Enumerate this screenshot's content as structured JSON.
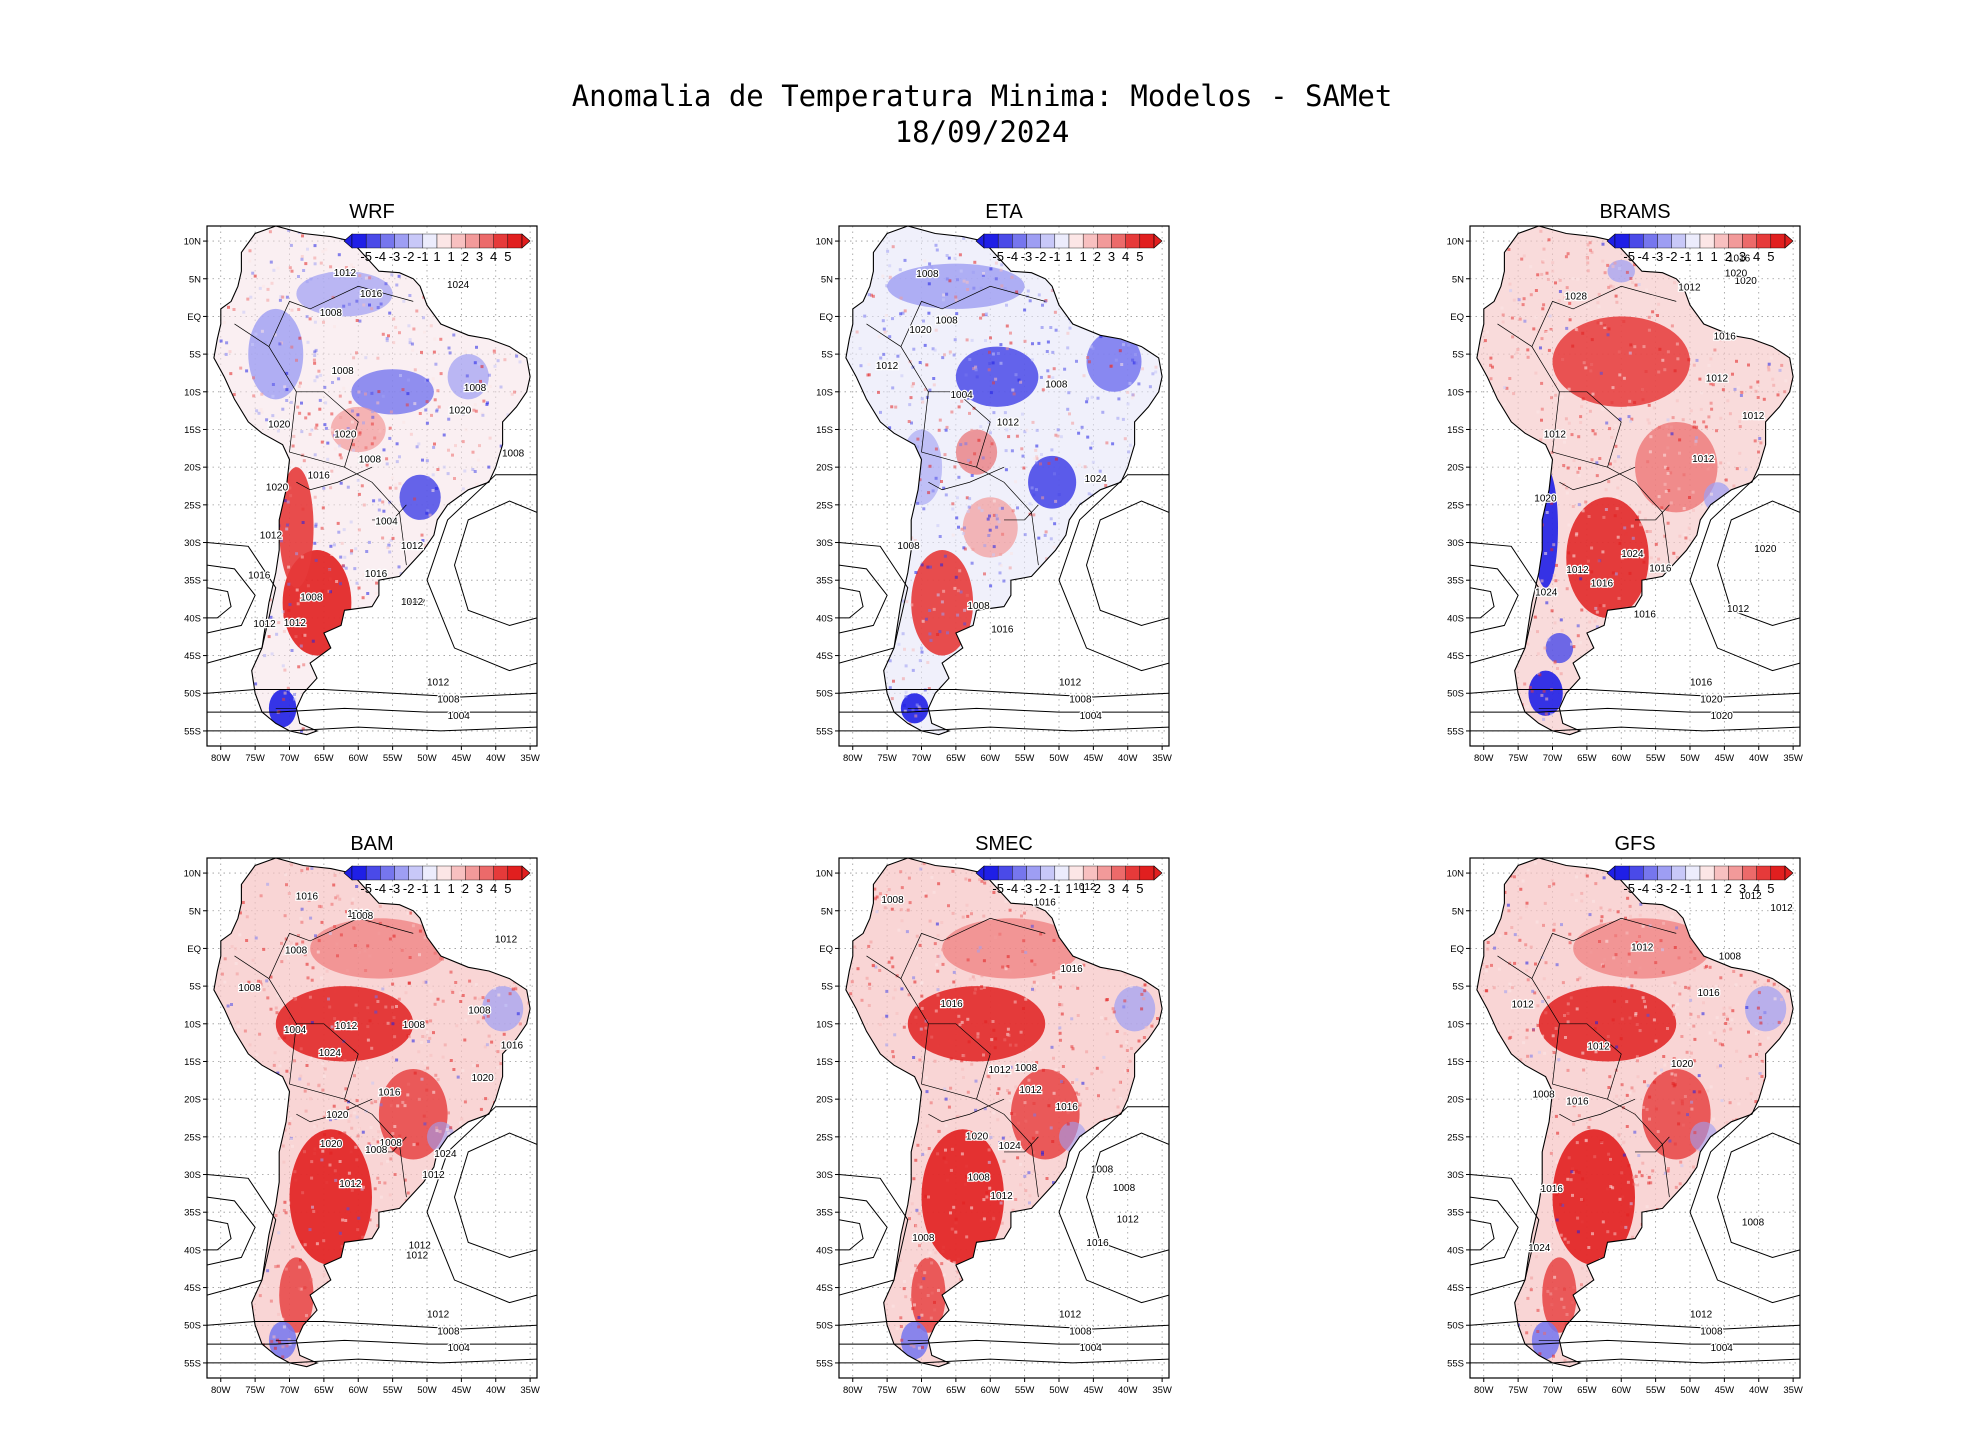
{
  "header": {
    "title": "Anomalia de Temperatura Minima: Modelos - SAMet",
    "date": "18/09/2024"
  },
  "colorbar": {
    "labels": [
      "-5",
      "-4",
      "-3",
      "-2",
      "-1",
      "1",
      "1",
      "2",
      "3",
      "4",
      "5"
    ],
    "colors": [
      "#1f1fe6",
      "#4a4ae8",
      "#7676ee",
      "#9e9ef3",
      "#c8c8f8",
      "#ececfc",
      "#fce6e6",
      "#f8c0c0",
      "#f29a9a",
      "#ec6a6a",
      "#e63a3a",
      "#e11f1f"
    ]
  },
  "axes": {
    "lat_labels": [
      "10N",
      "5N",
      "EQ",
      "5S",
      "10S",
      "15S",
      "20S",
      "25S",
      "30S",
      "35S",
      "40S",
      "45S",
      "50S",
      "55S"
    ],
    "lon_labels": [
      "80W",
      "75W",
      "70W",
      "65W",
      "60W",
      "55W",
      "50W",
      "45W",
      "40W",
      "35W"
    ]
  },
  "panels": [
    {
      "name": "WRF",
      "tone": "mixed",
      "pressure_labels": [
        "1008",
        "1012",
        "1016",
        "1012",
        "1012",
        "1008",
        "1008",
        "1012",
        "1020",
        "1016",
        "1020",
        "1012",
        "1008",
        "1012",
        "1020",
        "1016",
        "1020",
        "1024",
        "1012",
        "1016",
        "1008",
        "1004",
        "1008",
        "1012",
        "1008",
        "1004"
      ]
    },
    {
      "name": "ETA",
      "tone": "cool",
      "pressure_labels": [
        "1008",
        "1008",
        "1008",
        "1012",
        "1016",
        "1020",
        "1024",
        "1008",
        "1012",
        "1004",
        "1008",
        "1012",
        "1008",
        "1004"
      ]
    },
    {
      "name": "BRAMS",
      "tone": "warm",
      "pressure_labels": [
        "1016",
        "1012",
        "1012",
        "1012",
        "1016",
        "1016",
        "1020",
        "1012",
        "1012",
        "1024",
        "1020",
        "1016",
        "1016",
        "1020",
        "1028",
        "1024",
        "1020",
        "1012",
        "1012",
        "1016",
        "1020",
        "1020"
      ]
    },
    {
      "name": "BAM",
      "tone": "hot",
      "pressure_labels": [
        "1012",
        "1008",
        "1008",
        "1012",
        "1016",
        "1016",
        "1008",
        "1020",
        "1020",
        "1016",
        "1008",
        "1012",
        "1016",
        "1020",
        "1024",
        "1012",
        "1012",
        "1012",
        "1008",
        "1008",
        "1024",
        "1004",
        "1008",
        "1012",
        "1008",
        "1004"
      ]
    },
    {
      "name": "SMEC",
      "tone": "hot",
      "pressure_labels": [
        "1012",
        "1008",
        "1012",
        "1008",
        "1016",
        "1016",
        "1008",
        "1012",
        "1012",
        "1016",
        "1020",
        "1024",
        "1016",
        "1016",
        "1008",
        "1012",
        "1008",
        "1008",
        "1012",
        "1008",
        "1004"
      ]
    },
    {
      "name": "GFS",
      "tone": "hot",
      "pressure_labels": [
        "1012",
        "1008",
        "1012",
        "1016",
        "1012",
        "1008",
        "1016",
        "1012",
        "1016",
        "1020",
        "1024",
        "1012",
        "1008",
        "1012",
        "1008",
        "1004"
      ]
    }
  ]
}
